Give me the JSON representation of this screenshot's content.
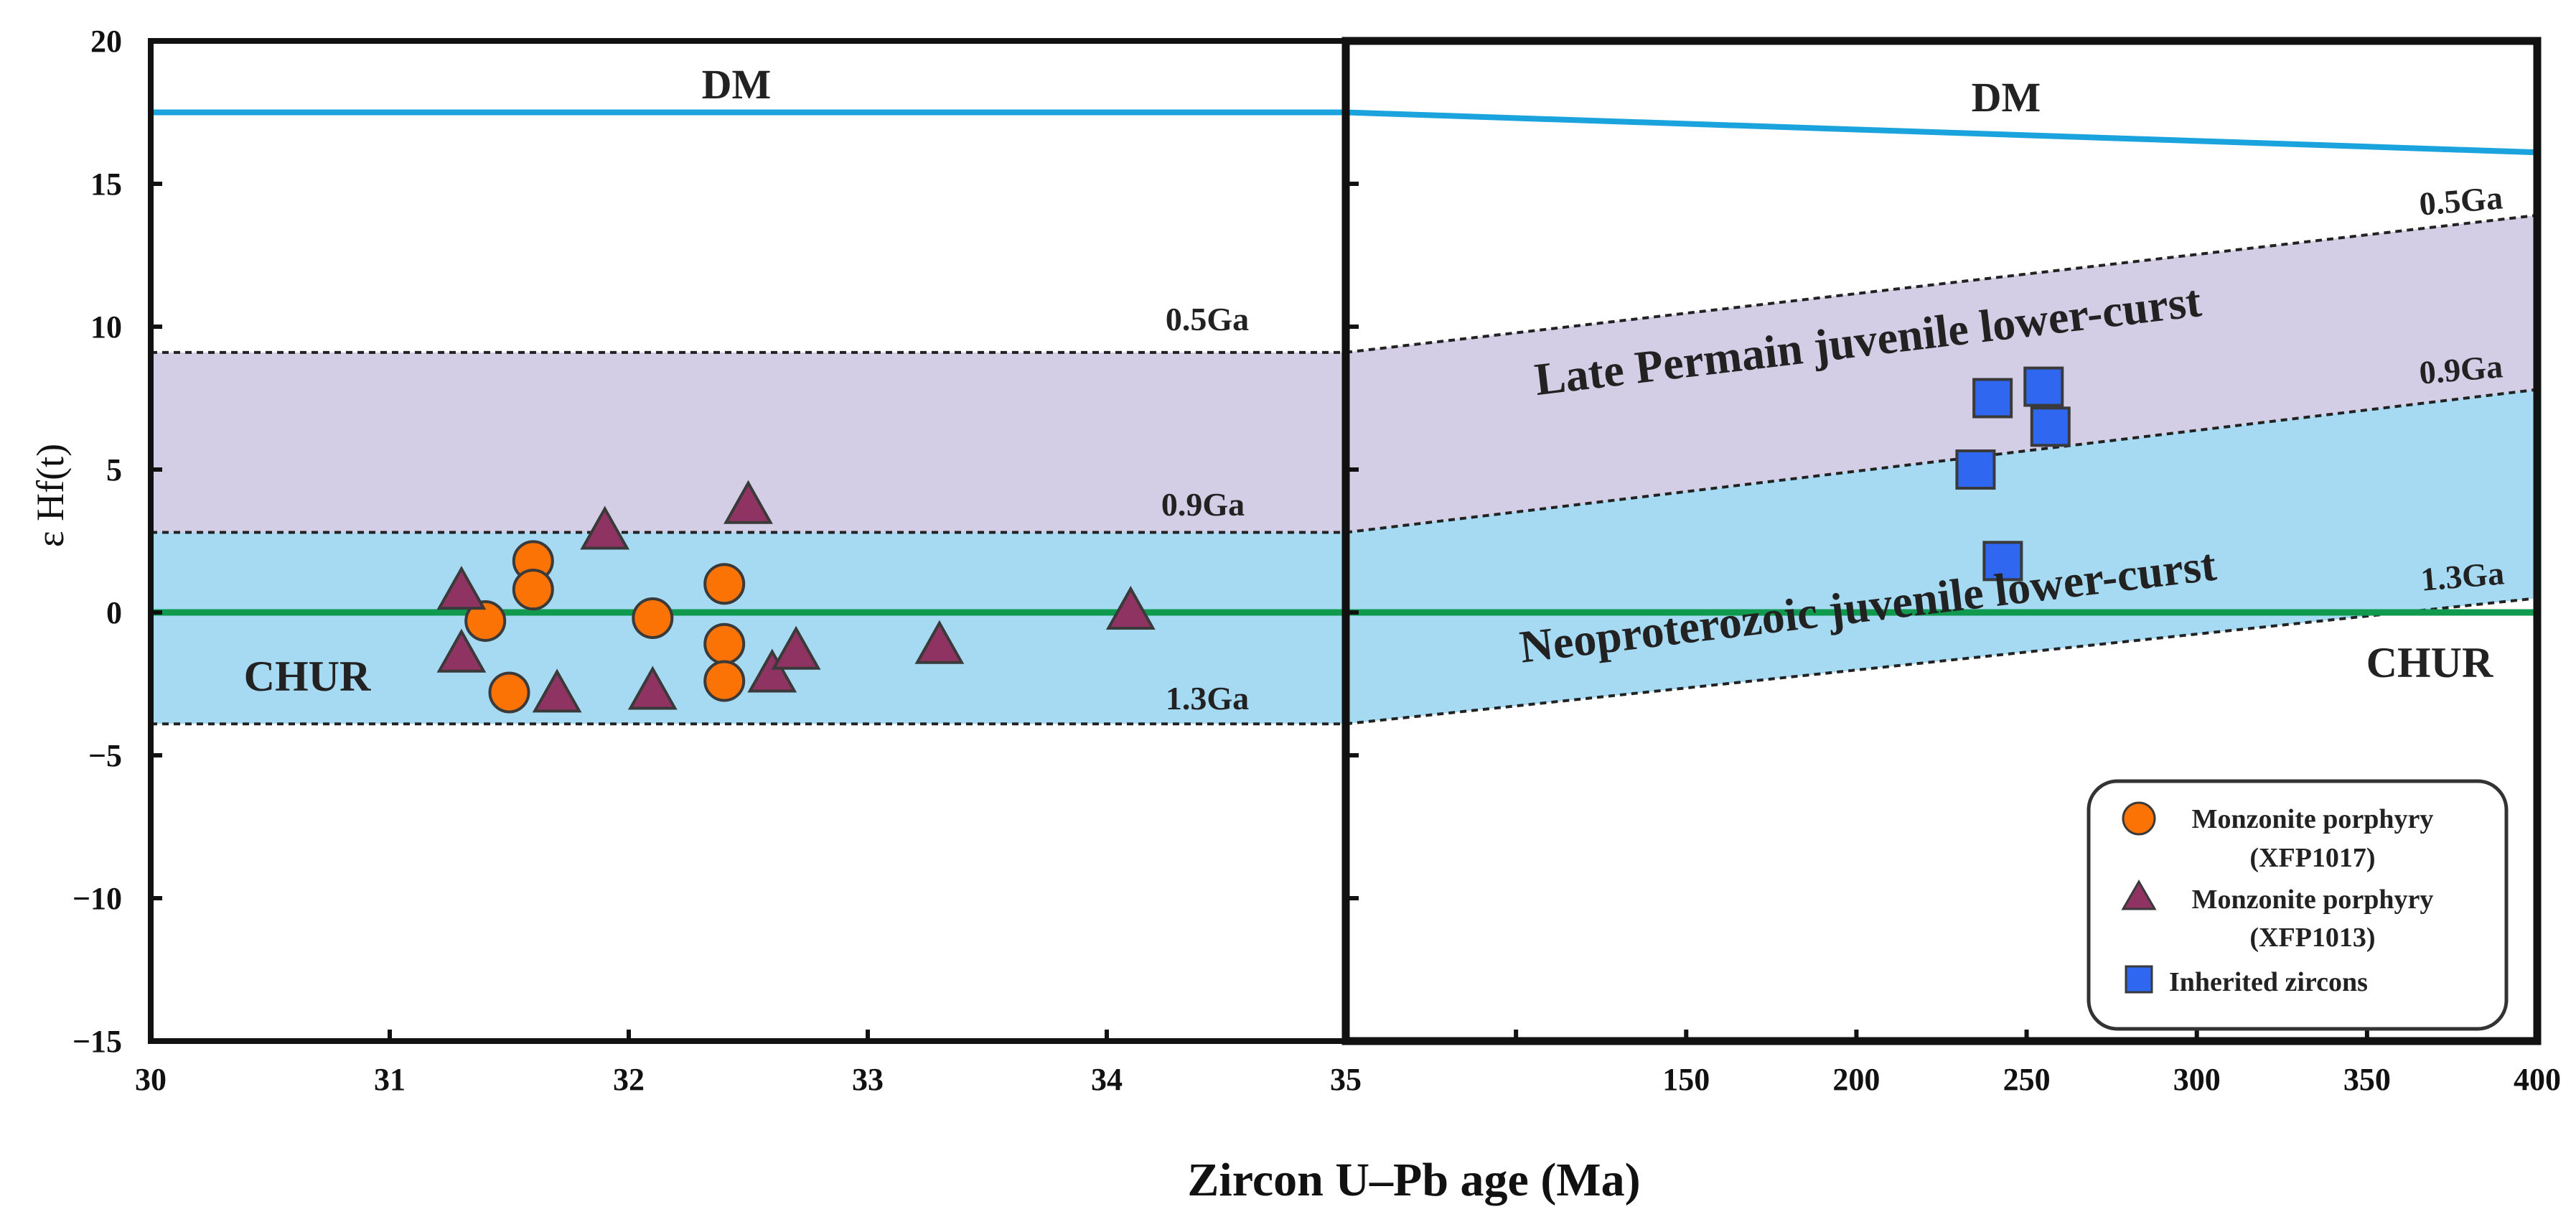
{
  "colors": {
    "dm_line": "#1aa3dc",
    "chur_line": "#109a50",
    "purple_band": "#d3cde5",
    "blue_band": "#a6daf3",
    "circle_fill": "#fb7304",
    "triangle_fill": "#8e3362",
    "square_fill": "#2f67f0",
    "marker_edge": "#3a3a3a",
    "frame": "#111111"
  },
  "chart_data": {
    "type": "scatter",
    "xlabel": "Zircon U–Pb age (Ma)",
    "ylabel": "ε Hf(t)",
    "ylim": [
      -15,
      20
    ],
    "yticks": [
      20,
      15,
      10,
      5,
      0,
      -5,
      -10,
      -15
    ],
    "ytick_labels": [
      "20",
      "15",
      "10",
      "5",
      "0",
      "−5",
      "−10",
      "−15"
    ],
    "panels": [
      {
        "name": "left",
        "xlim": [
          30,
          35
        ],
        "xticks": [
          30,
          31,
          32,
          33,
          34,
          35
        ],
        "xtick_labels": [
          "30",
          "31",
          "32",
          "33",
          "34",
          "35"
        ],
        "references": {
          "DM": {
            "x": [
              30,
              35
            ],
            "y": [
              17.5,
              17.5
            ]
          },
          "CHUR": {
            "x": [
              30,
              35
            ],
            "y": [
              0,
              0
            ]
          },
          "0.5Ga": {
            "x": [
              30,
              35
            ],
            "y": [
              9.1,
              9.1
            ]
          },
          "0.9Ga": {
            "x": [
              30,
              35
            ],
            "y": [
              2.8,
              2.8
            ]
          },
          "1.3Ga": {
            "x": [
              30,
              35
            ],
            "y": [
              -3.9,
              -3.9
            ]
          }
        }
      },
      {
        "name": "right",
        "xlim": [
          35,
          400
        ],
        "xticks": [
          35,
          150,
          200,
          250,
          300,
          350,
          400
        ],
        "xtick_labels": [
          "35",
          "150",
          "200",
          "250",
          "300",
          "350",
          "400"
        ],
        "x_breaks": [
          35,
          100,
          150,
          200,
          250,
          300,
          350,
          400
        ],
        "references": {
          "DM": {
            "x": [
              35,
              400
            ],
            "y": [
              17.5,
              16.1
            ]
          },
          "CHUR": {
            "x": [
              35,
              400
            ],
            "y": [
              0,
              0
            ]
          },
          "0.5Ga": {
            "x": [
              35,
              400
            ],
            "y": [
              9.1,
              13.9
            ]
          },
          "0.9Ga": {
            "x": [
              35,
              400
            ],
            "y": [
              2.8,
              7.8
            ]
          },
          "1.3Ga": {
            "x": [
              35,
              400
            ],
            "y": [
              -3.9,
              0.5
            ]
          }
        }
      }
    ],
    "series": [
      {
        "name": "Monzonite porphyry (XFP1017)",
        "marker": "circle",
        "panel": "left",
        "points": [
          [
            31.4,
            -0.3
          ],
          [
            31.5,
            -2.8
          ],
          [
            31.6,
            1.8
          ],
          [
            31.6,
            0.8
          ],
          [
            32.1,
            -0.2
          ],
          [
            32.4,
            1.0
          ],
          [
            32.4,
            -1.1
          ],
          [
            32.4,
            -2.4
          ]
        ]
      },
      {
        "name": "Monzonite porphyry (XFP1013)",
        "marker": "triangle",
        "panel": "left",
        "points": [
          [
            31.3,
            0.7
          ],
          [
            31.3,
            -1.5
          ],
          [
            31.7,
            -2.9
          ],
          [
            31.9,
            2.8
          ],
          [
            32.1,
            -2.8
          ],
          [
            32.5,
            3.7
          ],
          [
            32.6,
            -2.2
          ],
          [
            32.7,
            -1.4
          ],
          [
            33.3,
            -1.2
          ],
          [
            34.1,
            0.0
          ]
        ]
      },
      {
        "name": "Inherited zircons",
        "marker": "square",
        "panel": "right",
        "points": [
          [
            235,
            5.0
          ],
          [
            240,
            7.5
          ],
          [
            243,
            1.8
          ],
          [
            255,
            7.9
          ],
          [
            257,
            6.5
          ]
        ]
      }
    ],
    "annotations": {
      "dm_left": "DM",
      "dm_right": "DM",
      "chur_left": "CHUR",
      "chur_right": "CHUR",
      "ga05_left": "0.5Ga",
      "ga09_left": "0.9Ga",
      "ga13_left": "1.3Ga",
      "ga05_right": "0.5Ga",
      "ga09_right": "0.9Ga",
      "ga13_right": "1.3Ga",
      "late_permian": "Late Permain juvenile lower-curst",
      "neoproterozoic": "Neoproterozoic juvenile lower-curst"
    },
    "legend": {
      "position": "bottom-right",
      "entries": [
        {
          "marker": "circle",
          "line1": "Monzonite porphyry",
          "line2": "(XFP1017)"
        },
        {
          "marker": "triangle",
          "line1": "Monzonite porphyry",
          "line2": "(XFP1013)"
        },
        {
          "marker": "square",
          "line1": "Inherited zircons",
          "line2": ""
        }
      ]
    }
  }
}
